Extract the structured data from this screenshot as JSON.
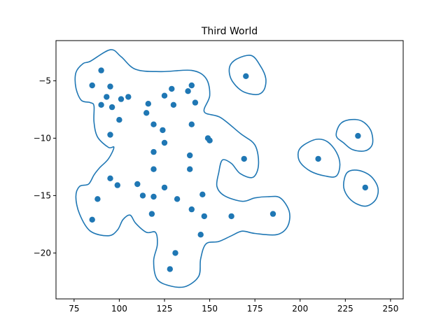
{
  "chart_data": {
    "type": "scatter",
    "title": "Third World",
    "xlabel": "",
    "ylabel": "",
    "xlim": [
      65,
      257
    ],
    "ylim": [
      -24,
      -1.5
    ],
    "xticks": [
      75,
      100,
      125,
      150,
      175,
      200,
      225,
      250
    ],
    "yticks": [
      -5,
      -10,
      -15,
      -20
    ],
    "grid": false,
    "colors": {
      "points": "#1f77b4",
      "outline": "#1f77b4"
    },
    "points": [
      [
        85,
        -5.4
      ],
      [
        90,
        -4.1
      ],
      [
        95,
        -5.5
      ],
      [
        93,
        -6.4
      ],
      [
        101,
        -6.6
      ],
      [
        105,
        -6.4
      ],
      [
        90,
        -7.1
      ],
      [
        96,
        -7.3
      ],
      [
        100,
        -8.4
      ],
      [
        95,
        -9.7
      ],
      [
        116,
        -7.0
      ],
      [
        115,
        -7.8
      ],
      [
        119,
        -8.8
      ],
      [
        124,
        -9.3
      ],
      [
        125,
        -6.3
      ],
      [
        129,
        -5.7
      ],
      [
        130,
        -7.1
      ],
      [
        138,
        -5.9
      ],
      [
        140,
        -5.4
      ],
      [
        142,
        -6.9
      ],
      [
        140,
        -8.8
      ],
      [
        149,
        -10.0
      ],
      [
        150,
        -10.2
      ],
      [
        125,
        -10.4
      ],
      [
        119,
        -11.2
      ],
      [
        139,
        -11.5
      ],
      [
        119,
        -12.7
      ],
      [
        139,
        -12.7
      ],
      [
        95,
        -13.5
      ],
      [
        99,
        -14.1
      ],
      [
        110,
        -14.0
      ],
      [
        113,
        -15.0
      ],
      [
        119,
        -15.1
      ],
      [
        125,
        -14.3
      ],
      [
        132,
        -15.3
      ],
      [
        146,
        -14.9
      ],
      [
        88,
        -15.3
      ],
      [
        85,
        -17.1
      ],
      [
        118,
        -16.6
      ],
      [
        140,
        -16.2
      ],
      [
        147,
        -16.8
      ],
      [
        162,
        -16.8
      ],
      [
        185,
        -16.6
      ],
      [
        145,
        -18.4
      ],
      [
        131,
        -20.0
      ],
      [
        128,
        -21.4
      ],
      [
        169,
        -11.8
      ],
      [
        170,
        -4.6
      ],
      [
        210,
        -11.8
      ],
      [
        232,
        -9.8
      ],
      [
        236,
        -14.3
      ]
    ],
    "outlines": [
      [
        [
          84,
          -3.3
        ],
        [
          95,
          -2.3
        ],
        [
          101,
          -2.9
        ],
        [
          109,
          -4.0
        ],
        [
          123,
          -4.2
        ],
        [
          140,
          -4.1
        ],
        [
          148,
          -4.8
        ],
        [
          150,
          -6.3
        ],
        [
          147,
          -7.7
        ],
        [
          156,
          -8.2
        ],
        [
          167,
          -9.6
        ],
        [
          175,
          -10.6
        ],
        [
          177,
          -12.3
        ],
        [
          174,
          -13.4
        ],
        [
          167,
          -13.1
        ],
        [
          162,
          -12.2
        ],
        [
          157,
          -11.9
        ],
        [
          155,
          -13.0
        ],
        [
          154,
          -14.2
        ],
        [
          158,
          -15.0
        ],
        [
          168,
          -15.5
        ],
        [
          175,
          -15.2
        ],
        [
          182,
          -15.1
        ],
        [
          189,
          -15.2
        ],
        [
          194,
          -16.4
        ],
        [
          193,
          -17.7
        ],
        [
          187,
          -18.4
        ],
        [
          175,
          -18.3
        ],
        [
          168,
          -18.1
        ],
        [
          162,
          -18.5
        ],
        [
          155,
          -19.0
        ],
        [
          148,
          -19.2
        ],
        [
          145,
          -20.5
        ],
        [
          144,
          -22.0
        ],
        [
          137,
          -22.9
        ],
        [
          129,
          -22.9
        ],
        [
          121,
          -22.3
        ],
        [
          119,
          -20.7
        ],
        [
          121,
          -19.3
        ],
        [
          120,
          -18.2
        ],
        [
          115,
          -18.2
        ],
        [
          109,
          -17.4
        ],
        [
          106,
          -16.7
        ],
        [
          102,
          -17.1
        ],
        [
          99,
          -18.0
        ],
        [
          94,
          -18.5
        ],
        [
          84,
          -18.1
        ],
        [
          78,
          -16.6
        ],
        [
          76,
          -15.1
        ],
        [
          78,
          -14.2
        ],
        [
          83,
          -14.0
        ],
        [
          86,
          -13.2
        ],
        [
          89,
          -12.6
        ],
        [
          94,
          -11.8
        ],
        [
          97,
          -10.8
        ],
        [
          94,
          -10.8
        ],
        [
          88,
          -9.9
        ],
        [
          86,
          -8.6
        ],
        [
          86,
          -7.2
        ],
        [
          84,
          -6.9
        ],
        [
          79,
          -6.7
        ],
        [
          76,
          -5.6
        ],
        [
          76,
          -4.3
        ],
        [
          80,
          -3.5
        ]
      ],
      [
        [
          165,
          -3.1
        ],
        [
          173,
          -2.8
        ],
        [
          178,
          -3.7
        ],
        [
          181,
          -4.8
        ],
        [
          180,
          -5.8
        ],
        [
          176,
          -6.2
        ],
        [
          168,
          -5.9
        ],
        [
          162,
          -4.9
        ],
        [
          161,
          -3.8
        ]
      ],
      [
        [
          202,
          -10.6
        ],
        [
          209,
          -10.1
        ],
        [
          215,
          -10.3
        ],
        [
          220,
          -11.2
        ],
        [
          222,
          -12.3
        ],
        [
          220,
          -13.3
        ],
        [
          214,
          -13.3
        ],
        [
          206,
          -12.9
        ],
        [
          200,
          -12.1
        ],
        [
          199,
          -11.2
        ]
      ],
      [
        [
          222,
          -8.8
        ],
        [
          227,
          -8.4
        ],
        [
          234,
          -8.5
        ],
        [
          239,
          -9.3
        ],
        [
          240,
          -10.5
        ],
        [
          236,
          -11.1
        ],
        [
          229,
          -11.0
        ],
        [
          224,
          -10.4
        ],
        [
          220,
          -9.8
        ]
      ],
      [
        [
          226,
          -13.0
        ],
        [
          232,
          -12.8
        ],
        [
          239,
          -13.3
        ],
        [
          243,
          -14.3
        ],
        [
          242,
          -15.3
        ],
        [
          237,
          -15.9
        ],
        [
          231,
          -15.7
        ],
        [
          226,
          -15.0
        ],
        [
          224,
          -14.1
        ]
      ]
    ]
  }
}
